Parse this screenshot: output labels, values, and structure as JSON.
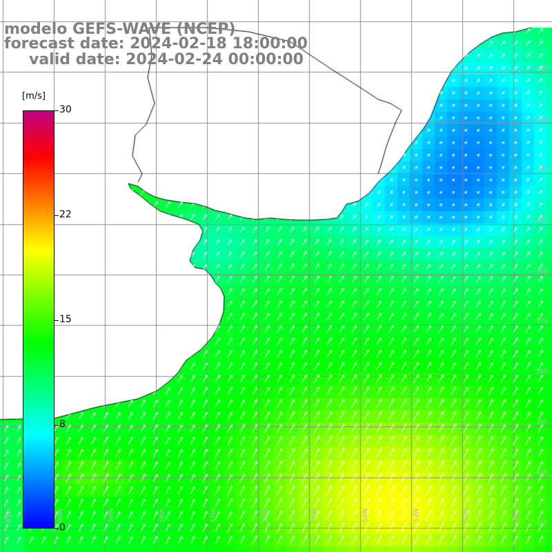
{
  "header": {
    "title": "modelo GEFS-WAVE (NCEP)",
    "forecast_date": "forecast date: 2024-02-18 18:00:00",
    "valid_date": "valid date: 2024-02-24 00:00:00"
  },
  "colorbar": {
    "unit": "[m/s]",
    "ticks": [
      "30",
      "22",
      "15",
      "8",
      "0"
    ],
    "tick_values": [
      30,
      22,
      15,
      8,
      0
    ],
    "min": 0,
    "max": 30,
    "colors": [
      "#0000ff",
      "#0080ff",
      "#00ffff",
      "#00ff80",
      "#00ff00",
      "#80ff00",
      "#ffff00",
      "#ff8000",
      "#ff0000",
      "#c00080"
    ]
  },
  "map": {
    "lat_labels": [
      "32S",
      "33S",
      "34S",
      "35S",
      "36S",
      "37S",
      "38S",
      "39S",
      "40S",
      "41S"
    ],
    "lon_labels": [
      "61W",
      "60W",
      "59W",
      "58W",
      "57W",
      "56W",
      "55W",
      "54W",
      "53W",
      "52W",
      "51W"
    ],
    "grid": true,
    "vectors": true,
    "land_color": "#ffffff",
    "coastline_color": "#000000"
  },
  "chart_data": {
    "type": "heatmap",
    "title": "modelo GEFS-WAVE (NCEP)",
    "subtitle": "forecast date: 2024-02-18 18:00:00 / valid date: 2024-02-24 00:00:00",
    "units": "m/s",
    "colorbar_range": [
      0,
      30
    ],
    "colorbar_ticks": [
      0,
      8,
      15,
      22,
      30
    ],
    "field_range_estimate": [
      3,
      21
    ],
    "pattern": "winds 3-6 m/s (blue) near the northeast coast; 8-10 m/s (cyan) along the estuary; 11-14 m/s (green) over most of the ocean; 15-19 m/s (yellow-orange) in the southeast; vectors pointing northeast"
  }
}
